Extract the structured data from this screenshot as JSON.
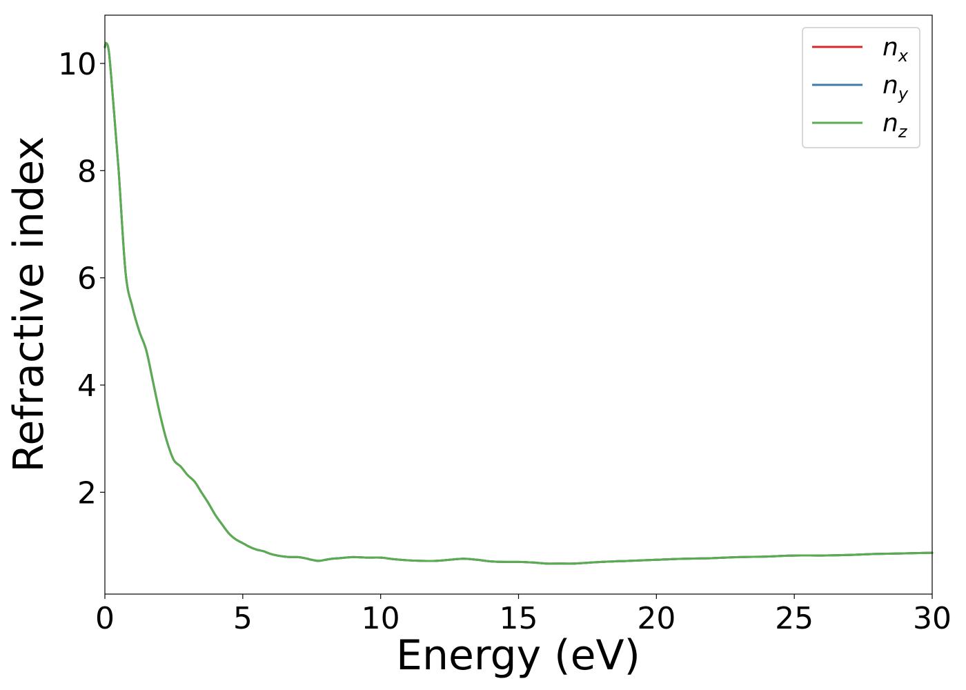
{
  "chart_data": {
    "type": "line",
    "title": "",
    "xlabel": "Energy (eV)",
    "ylabel": "Refractive index",
    "xlim": [
      0,
      30
    ],
    "ylim": [
      0.1,
      10.9
    ],
    "xticks": [
      0,
      5,
      10,
      15,
      20,
      25,
      30
    ],
    "yticks": [
      2,
      4,
      6,
      8,
      10
    ],
    "xtick_labels": [
      "0",
      "5",
      "10",
      "15",
      "20",
      "25",
      "30"
    ],
    "ytick_labels": [
      "2",
      "4",
      "6",
      "8",
      "10"
    ],
    "grid": false,
    "legend_position": "top-right",
    "x": [
      0,
      0.05,
      0.15,
      0.3,
      0.5,
      0.75,
      1.0,
      1.25,
      1.5,
      1.75,
      2.0,
      2.25,
      2.5,
      2.75,
      3.0,
      3.25,
      3.5,
      3.75,
      4.0,
      4.25,
      4.5,
      4.75,
      5.0,
      5.25,
      5.5,
      5.75,
      6.0,
      6.25,
      6.5,
      6.75,
      7.0,
      7.25,
      7.5,
      7.75,
      8.0,
      8.25,
      8.5,
      9.0,
      9.5,
      10.0,
      10.5,
      11.0,
      11.5,
      12.0,
      12.5,
      13.0,
      13.5,
      14.0,
      14.5,
      15.0,
      15.5,
      16.0,
      16.5,
      17.0,
      18.0,
      19.0,
      20.0,
      21.0,
      22.0,
      23.0,
      24.0,
      25.0,
      26.0,
      27.0,
      28.0,
      29.0,
      30.0
    ],
    "series": [
      {
        "name": "n_x",
        "color": "#d62728",
        "values": [
          10.3,
          10.38,
          10.2,
          9.3,
          8.0,
          6.1,
          5.45,
          5.0,
          4.65,
          4.05,
          3.45,
          2.95,
          2.6,
          2.48,
          2.32,
          2.2,
          2.0,
          1.8,
          1.58,
          1.4,
          1.23,
          1.12,
          1.05,
          0.98,
          0.93,
          0.9,
          0.85,
          0.82,
          0.8,
          0.79,
          0.79,
          0.77,
          0.74,
          0.72,
          0.74,
          0.76,
          0.77,
          0.79,
          0.78,
          0.78,
          0.75,
          0.73,
          0.72,
          0.72,
          0.74,
          0.76,
          0.74,
          0.71,
          0.7,
          0.7,
          0.69,
          0.67,
          0.67,
          0.67,
          0.7,
          0.72,
          0.74,
          0.76,
          0.77,
          0.79,
          0.8,
          0.82,
          0.82,
          0.83,
          0.85,
          0.86,
          0.87
        ]
      },
      {
        "name": "n_y",
        "color": "#3c7bab",
        "values": [
          10.3,
          10.38,
          10.2,
          9.3,
          8.0,
          6.1,
          5.45,
          5.0,
          4.65,
          4.05,
          3.45,
          2.95,
          2.6,
          2.48,
          2.32,
          2.2,
          2.0,
          1.8,
          1.58,
          1.4,
          1.23,
          1.12,
          1.05,
          0.98,
          0.93,
          0.9,
          0.85,
          0.82,
          0.8,
          0.79,
          0.79,
          0.77,
          0.74,
          0.72,
          0.74,
          0.76,
          0.77,
          0.79,
          0.78,
          0.78,
          0.75,
          0.73,
          0.72,
          0.72,
          0.74,
          0.76,
          0.74,
          0.71,
          0.7,
          0.7,
          0.69,
          0.67,
          0.67,
          0.67,
          0.7,
          0.72,
          0.74,
          0.76,
          0.77,
          0.79,
          0.8,
          0.82,
          0.82,
          0.83,
          0.85,
          0.86,
          0.87
        ]
      },
      {
        "name": "n_z",
        "color": "#5aac50",
        "values": [
          10.3,
          10.38,
          10.2,
          9.3,
          8.0,
          6.1,
          5.45,
          5.0,
          4.65,
          4.05,
          3.45,
          2.95,
          2.6,
          2.48,
          2.32,
          2.2,
          2.0,
          1.8,
          1.58,
          1.4,
          1.23,
          1.12,
          1.05,
          0.98,
          0.93,
          0.9,
          0.85,
          0.82,
          0.8,
          0.79,
          0.79,
          0.77,
          0.74,
          0.72,
          0.74,
          0.76,
          0.77,
          0.79,
          0.78,
          0.78,
          0.75,
          0.73,
          0.72,
          0.72,
          0.74,
          0.76,
          0.74,
          0.71,
          0.7,
          0.7,
          0.69,
          0.67,
          0.67,
          0.67,
          0.7,
          0.72,
          0.74,
          0.76,
          0.77,
          0.79,
          0.8,
          0.82,
          0.82,
          0.83,
          0.85,
          0.86,
          0.87
        ]
      }
    ],
    "legend": [
      {
        "symbol": "n",
        "subscript": "x",
        "color": "#d62728"
      },
      {
        "symbol": "n",
        "subscript": "y",
        "color": "#3c7bab"
      },
      {
        "symbol": "n",
        "subscript": "z",
        "color": "#5aac50"
      }
    ]
  }
}
